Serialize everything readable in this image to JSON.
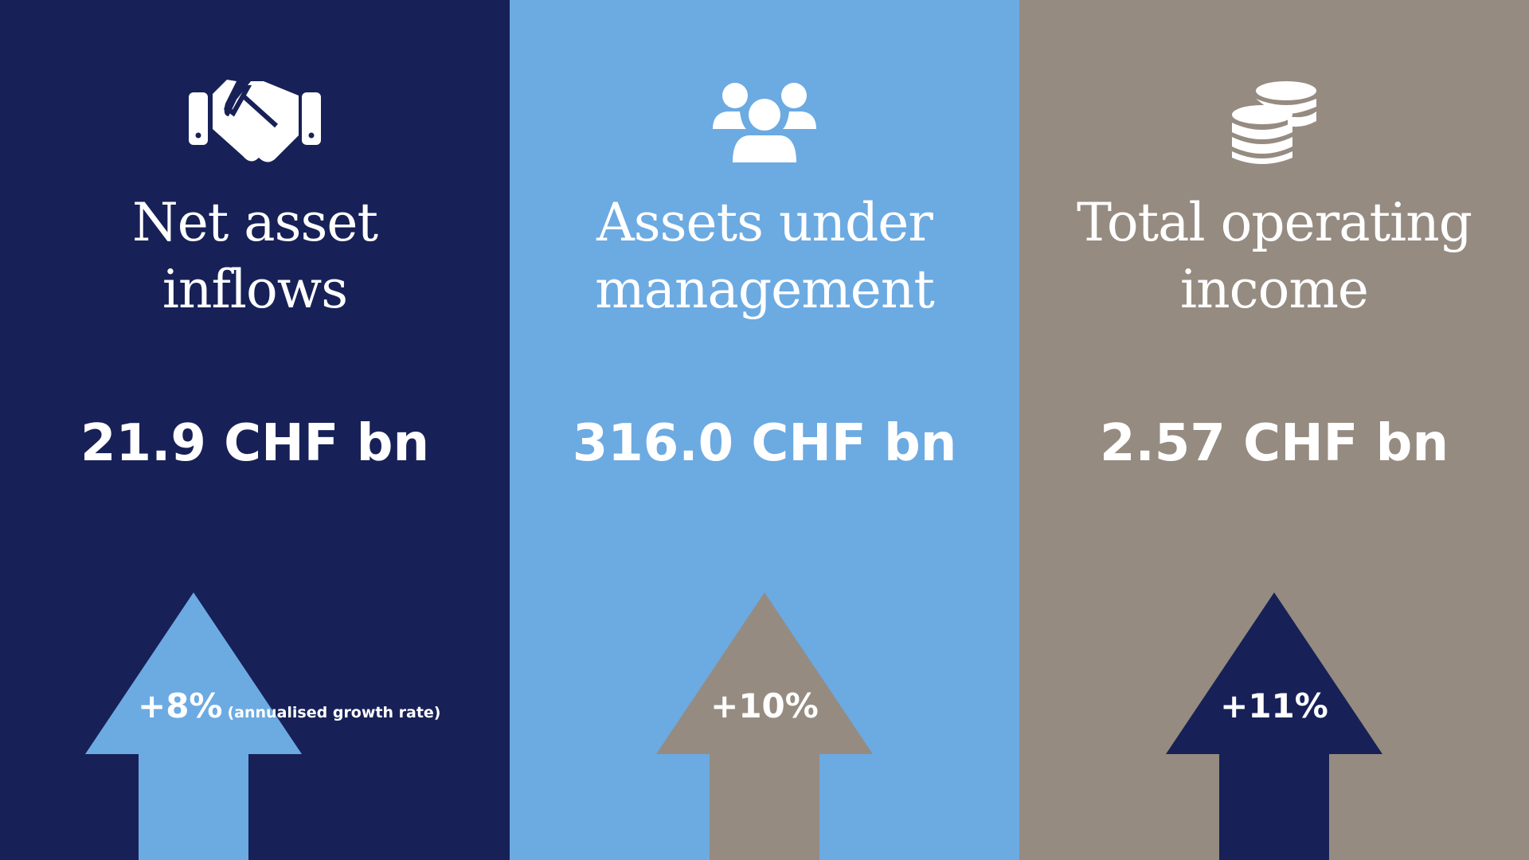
{
  "colors": {
    "navy": "#172157",
    "light_blue": "#6caae2",
    "taupe": "#958b81",
    "text": "#ffffff"
  },
  "panels": [
    {
      "icon": "handshake-icon",
      "title_line1": "Net asset",
      "title_line2": "inflows",
      "value": "21.9 CHF bn",
      "growth": "+8%",
      "growth_note": "(annualised growth rate)",
      "background": "#172157",
      "arrow_color": "#6caae2"
    },
    {
      "icon": "users-icon",
      "title_line1": "Assets under",
      "title_line2": "management",
      "value": "316.0 CHF bn",
      "growth": "+10%",
      "background": "#6caae2",
      "arrow_color": "#958b81"
    },
    {
      "icon": "coins-icon",
      "title_line1": "Total operating",
      "title_line2": "income",
      "value": "2.57 CHF bn",
      "growth": "+11%",
      "background": "#958b81",
      "arrow_color": "#172157"
    }
  ]
}
